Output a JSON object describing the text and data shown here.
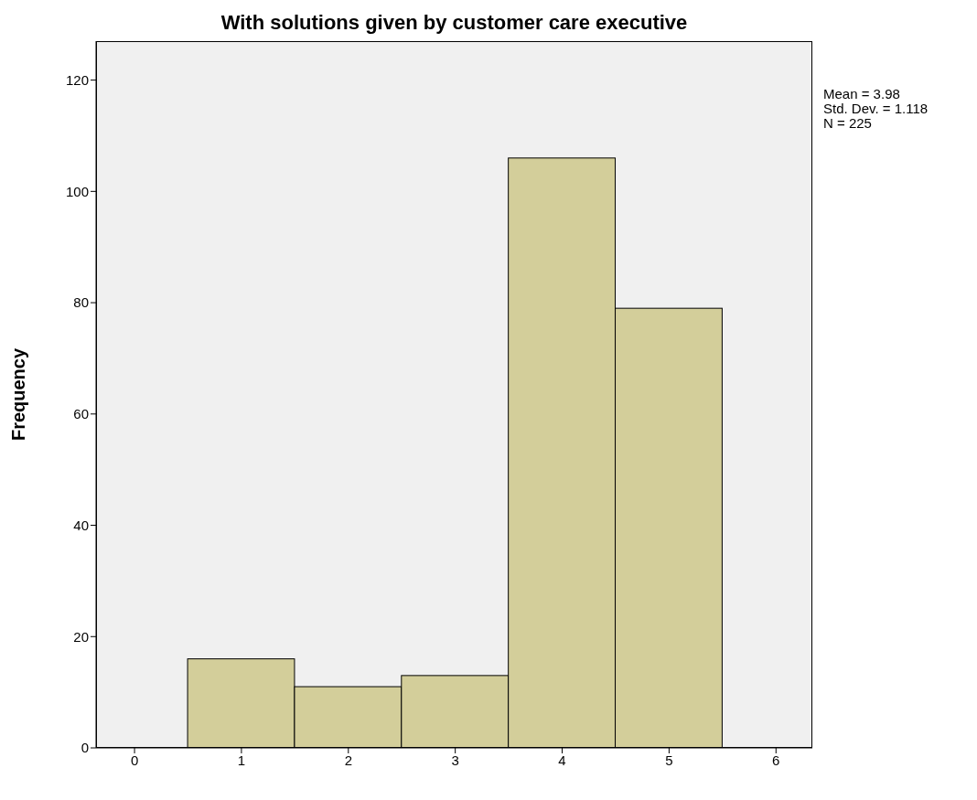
{
  "chart_data": {
    "type": "histogram",
    "title": "With solutions given by customer care executive",
    "ylabel": "Frequency",
    "bins": [
      0.5,
      1.5,
      2.5,
      3.5,
      4.5,
      5.5
    ],
    "values": [
      16,
      11,
      13,
      106,
      79
    ],
    "color": "#d3ce9a",
    "xlim": [
      -0.36,
      6.34
    ],
    "xticks": [
      0,
      1,
      2,
      3,
      4,
      5,
      6
    ],
    "ylim": [
      0,
      127
    ],
    "yticks": [
      0,
      20,
      40,
      60,
      80,
      100,
      120
    ],
    "annotations": [
      "Mean = 3.98",
      "Std. Dev. = 1.118",
      "N = 225"
    ]
  }
}
